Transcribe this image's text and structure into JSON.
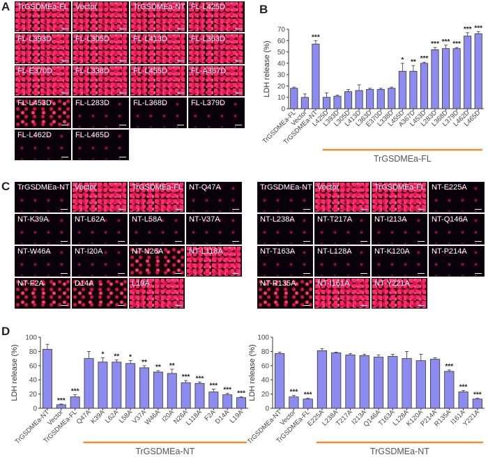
{
  "panels": {
    "a": "A",
    "b": "B",
    "c": "C",
    "d": "D"
  },
  "panelA": {
    "tiles": [
      {
        "label": "TrGSDMEa-FL",
        "level": "hi"
      },
      {
        "label": "Vector",
        "level": "hi"
      },
      {
        "label": "TrGSDMEa-NT",
        "level": "hi"
      },
      {
        "label": "FL-L425D",
        "level": "hi"
      },
      {
        "label": "FL-L393D",
        "level": "hi"
      },
      {
        "label": "FL-L305D",
        "level": "hi"
      },
      {
        "label": "FL-L413D",
        "level": "hi"
      },
      {
        "label": "FL-L363D",
        "level": "hi"
      },
      {
        "label": "FL-E370D",
        "level": "hi"
      },
      {
        "label": "FL-L338D",
        "level": "hi"
      },
      {
        "label": "FL-L455D",
        "level": "hi"
      },
      {
        "label": "FL-A367D",
        "level": "hi"
      },
      {
        "label": "FL-L453D",
        "level": "med"
      },
      {
        "label": "FL-L283D",
        "level": "lo"
      },
      {
        "label": "FL-L368D",
        "level": "lo"
      },
      {
        "label": "FL-L379D",
        "level": "lo"
      },
      {
        "label": "FL-L462D",
        "level": "lo"
      },
      {
        "label": "FL-L465D",
        "level": "lo"
      }
    ]
  },
  "panelC_left": {
    "tiles": [
      {
        "label": "TrGSDMEa-NT",
        "level": "lo"
      },
      {
        "label": "Vector",
        "level": "hi"
      },
      {
        "label": "TrGSDMEa-FL",
        "level": "hi"
      },
      {
        "label": "NT-Q47A",
        "level": "lo"
      },
      {
        "label": "NT-K39A",
        "level": "lo"
      },
      {
        "label": "NT-L62A",
        "level": "lo"
      },
      {
        "label": "NT-L58A",
        "level": "lo"
      },
      {
        "label": "NT-V37A",
        "level": "lo"
      },
      {
        "label": "NT-W46A",
        "level": "lo"
      },
      {
        "label": "NT-I20A",
        "level": "lo"
      },
      {
        "label": "NT-N26A",
        "level": "med"
      },
      {
        "label": "NT-L118A",
        "level": "hi"
      },
      {
        "label": "NT-F2A",
        "level": "med"
      },
      {
        "label": "D14A",
        "level": "med"
      },
      {
        "label": "L19A",
        "level": "hi"
      }
    ]
  },
  "panelC_right": {
    "tiles": [
      {
        "label": "TrGSDMEa-NT",
        "level": "lo"
      },
      {
        "label": "Vector",
        "level": "hi"
      },
      {
        "label": "TrGSDMEa-FL",
        "level": "hi"
      },
      {
        "label": "NT-E225A",
        "level": "lo"
      },
      {
        "label": "NT-L238A",
        "level": "lo"
      },
      {
        "label": "NT-T217A",
        "level": "lo"
      },
      {
        "label": "NT-I213A",
        "level": "lo"
      },
      {
        "label": "NT-Q146A",
        "level": "lo"
      },
      {
        "label": "NT-T163A",
        "level": "lo"
      },
      {
        "label": "NT-L128A",
        "level": "lo"
      },
      {
        "label": "NT-K120A",
        "level": "lo"
      },
      {
        "label": "NT-P214A",
        "level": "lo"
      },
      {
        "label": "NT-R135A",
        "level": "med"
      },
      {
        "label": "NT-I161A",
        "level": "hi"
      },
      {
        "label": "NT-Y221A",
        "level": "hi"
      }
    ]
  },
  "chart_data": [
    {
      "id": "B",
      "type": "bar",
      "ylabel": "LDH release (%)",
      "ylim": [
        0,
        70
      ],
      "yticks": [
        0,
        10,
        20,
        30,
        40,
        50,
        60,
        70
      ],
      "group_label": "TrGSDMEa-FL",
      "bar_color": "#8b8bf0",
      "group_line_color": "#f28a30",
      "categories": [
        "TrGSDMEa-FL",
        "Vector",
        "TrGSDMEa-NT",
        "L425D",
        "L393D",
        "L305D",
        "L413D",
        "L363D",
        "E370D",
        "L338D",
        "L455D",
        "A367D",
        "L453D",
        "L283D",
        "L368D",
        "L379D",
        "L462D",
        "L465D"
      ],
      "values": [
        18,
        10,
        57,
        10,
        11,
        15,
        16,
        17,
        17,
        18,
        33,
        33,
        40,
        52,
        53,
        53,
        64,
        66
      ],
      "errors": [
        1,
        3,
        3,
        4,
        1,
        2,
        5,
        1,
        1,
        1,
        7,
        5,
        1,
        2,
        3,
        1,
        3,
        2
      ],
      "sig": [
        "",
        "",
        "***",
        "",
        "",
        "",
        "",
        "",
        "",
        "",
        "*",
        "**",
        "***",
        "***",
        "***",
        "***",
        "***",
        "***"
      ],
      "group_start": 3,
      "group_end": 17
    },
    {
      "id": "D-left",
      "type": "bar",
      "ylabel": "LDH release (%)",
      "ylim": [
        0,
        100
      ],
      "yticks": [
        0,
        20,
        40,
        60,
        80,
        100
      ],
      "group_label": "TrGSDMEa-NT",
      "bar_color": "#8b8bf0",
      "group_line_color": "#f28a30",
      "categories": [
        "TrGSDMEa-NT",
        "Vector",
        "TrGSDMEa-FL",
        "Q47A",
        "K39A",
        "L62A",
        "L58A",
        "V37A",
        "W46A",
        "I20A",
        "N26A",
        "L118A",
        "F2A",
        "D14A",
        "L19A"
      ],
      "values": [
        83,
        5,
        16,
        70,
        65,
        65,
        63,
        57,
        51,
        49,
        36,
        35,
        23,
        19,
        15
      ],
      "errors": [
        7,
        1,
        3,
        10,
        6,
        3,
        4,
        3,
        2,
        6,
        3,
        2,
        4,
        2,
        1
      ],
      "sig": [
        "",
        "***",
        "***",
        "",
        "*",
        "**",
        "*",
        "**",
        "**",
        "**",
        "***",
        "***",
        "***",
        "***",
        "***"
      ],
      "group_start": 3,
      "group_end": 14
    },
    {
      "id": "D-right",
      "type": "bar",
      "ylabel": "LDH release (%)",
      "ylim": [
        0,
        100
      ],
      "yticks": [
        0,
        20,
        40,
        60,
        80,
        100
      ],
      "group_label": "TrGSDMEa-NT",
      "bar_color": "#8b8bf0",
      "group_line_color": "#f28a30",
      "categories": [
        "TrGSDMEa-NT",
        "Vector",
        "TrGSDMEa-FL",
        "E225A",
        "L238A",
        "T217A",
        "I213A",
        "Q146A",
        "T163A",
        "L128A",
        "K120A",
        "P214A",
        "R135A",
        "I161A",
        "Y221A"
      ],
      "values": [
        77,
        16,
        13,
        81,
        78,
        75,
        74,
        72,
        73,
        70,
        67,
        69,
        52,
        23,
        13
      ],
      "errors": [
        2,
        2,
        1,
        3,
        1,
        2,
        2,
        3,
        3,
        10,
        9,
        2,
        2,
        2,
        1
      ],
      "sig": [
        "",
        "***",
        "***",
        "",
        "",
        "",
        "",
        "",
        "",
        "",
        "",
        "",
        "***",
        "***",
        "***"
      ],
      "group_start": 3,
      "group_end": 14
    }
  ]
}
